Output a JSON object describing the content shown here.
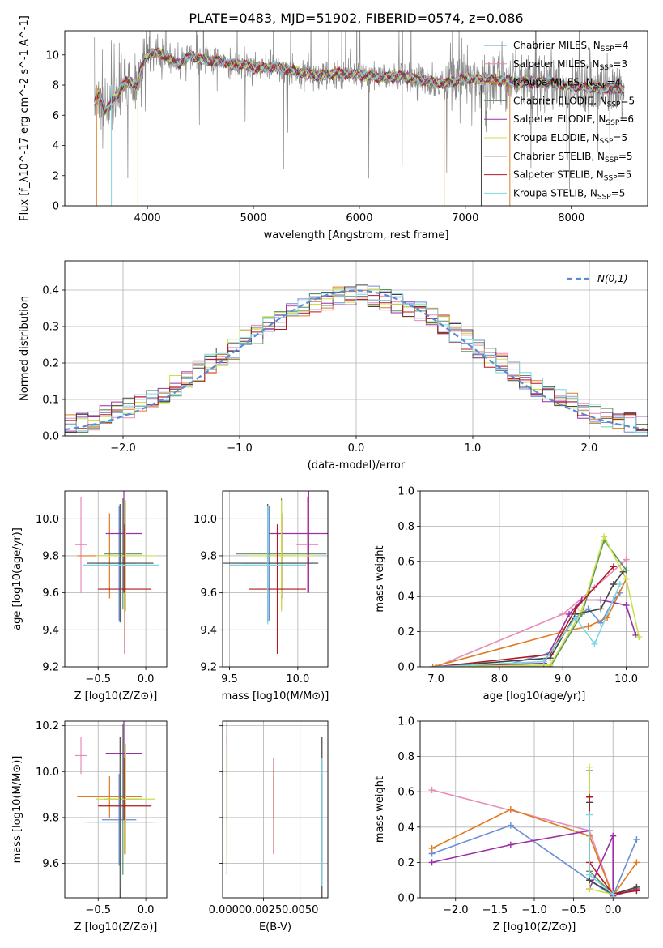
{
  "figure": {
    "title": "PLATE=0483, MJD=51902, FIBERID=0574, z=0.086"
  },
  "colors": {
    "Chabrier MILES": "#6a8fd8",
    "Salpeter MILES": "#e78bb8",
    "Kroupa MILES": "#e07a22",
    "Chabrier ELODIE": "#5f8f5f",
    "Salpeter ELODIE": "#9c2fa8",
    "Kroupa ELODIE": "#c8e04a",
    "Chabrier STELIB": "#444444",
    "Salpeter STELIB": "#b01822",
    "Kroupa STELIB": "#7fd6e0",
    "data": "#888888",
    "normal": "#5b8bd8"
  },
  "chart_data": [
    {
      "type": "line",
      "id": "spectrum",
      "xlabel": "wavelength [Angstrom, rest frame]",
      "ylabel": "Flux [f_λ10^-17 erg cm^-2 s^-1 A^-1]",
      "xlim": [
        3220,
        8720
      ],
      "ylim": [
        0,
        11.6
      ],
      "xticks": [
        4000,
        5000,
        6000,
        7000,
        8000
      ],
      "yticks": [
        0,
        2,
        4,
        6,
        8,
        10
      ],
      "grid": false,
      "legend_placement": "upper right",
      "continuum_points": {
        "x": [
          3500,
          3550,
          3600,
          3700,
          3800,
          3900,
          3950,
          4000,
          4100,
          4200,
          4300,
          4400,
          4500,
          4600,
          4700,
          4800,
          4900,
          5000,
          5200,
          5400,
          5600,
          5800,
          6000,
          6200,
          6400,
          6600,
          6800,
          7000,
          7200,
          7500,
          7800,
          8000,
          8300,
          8500
        ],
        "y": [
          6.8,
          7.5,
          6.2,
          7.2,
          8.2,
          8.0,
          9.3,
          10.0,
          10.2,
          9.8,
          9.4,
          10.0,
          9.7,
          9.6,
          9.6,
          9.3,
          9.4,
          9.1,
          9.2,
          8.9,
          8.6,
          8.8,
          8.7,
          8.5,
          8.6,
          8.3,
          8.1,
          8.4,
          8.4,
          8.2,
          8.2,
          7.9,
          7.8,
          7.7
        ]
      },
      "legend": [
        {
          "label": "Chabrier MILES, N",
          "sub": "SSP",
          "suffix": "=4"
        },
        {
          "label": "Salpeter MILES, N",
          "sub": "SSP",
          "suffix": "=3"
        },
        {
          "label": "Kroupa MILES, N",
          "sub": "SSP",
          "suffix": "=4"
        },
        {
          "label": "Chabrier ELODIE, N",
          "sub": "SSP",
          "suffix": "=5"
        },
        {
          "label": "Salpeter ELODIE, N",
          "sub": "SSP",
          "suffix": "=6"
        },
        {
          "label": "Kroupa ELODIE, N",
          "sub": "SSP",
          "suffix": "=5"
        },
        {
          "label": "Chabrier STELIB, N",
          "sub": "SSP",
          "suffix": "=5"
        },
        {
          "label": "Salpeter STELIB, N",
          "sub": "SSP",
          "suffix": "=5"
        },
        {
          "label": "Kroupa STELIB, N",
          "sub": "SSP",
          "suffix": "=5"
        }
      ]
    },
    {
      "type": "line",
      "id": "residuals",
      "xlabel": "(data-model)/error",
      "ylabel": "Normed distribution",
      "xlim": [
        -2.5,
        2.5
      ],
      "ylim": [
        0,
        0.48
      ],
      "xticks": [
        -2,
        -1,
        0,
        1,
        2
      ],
      "yticks": [
        0.0,
        0.1,
        0.2,
        0.3,
        0.4
      ],
      "grid": true,
      "legend_placement": "upper right",
      "legend_label": "N(0,1)"
    },
    {
      "type": "scatter",
      "id": "age-vs-Z",
      "xlabel": "Z [log10(Z/Z⊙)]",
      "ylabel": "age [log10(age/yr)]",
      "xlim": [
        -0.85,
        0.22
      ],
      "ylim": [
        9.2,
        10.15
      ],
      "xticks": [
        -0.5,
        0.0
      ],
      "yticks": [
        9.2,
        9.4,
        9.6,
        9.8,
        10.0
      ],
      "grid": true
    },
    {
      "type": "scatter",
      "id": "age-vs-mass",
      "xlabel": "mass [log10(M/M⊙)]",
      "ylabel": "",
      "xlim": [
        9.45,
        10.22
      ],
      "ylim": [
        9.2,
        10.15
      ],
      "xticks": [
        9.5,
        10.0
      ],
      "yticks": [
        9.2,
        9.4,
        9.6,
        9.8,
        10.0
      ],
      "grid": true
    },
    {
      "type": "line",
      "id": "weight-vs-age",
      "xlabel": "age [log10(age/yr)]",
      "ylabel": "mass weight",
      "xlim": [
        6.75,
        10.35
      ],
      "ylim": [
        0,
        1.0
      ],
      "xticks": [
        7,
        8,
        9,
        10
      ],
      "yticks": [
        0.0,
        0.2,
        0.4,
        0.6,
        0.8,
        1.0
      ],
      "grid": true
    },
    {
      "type": "scatter",
      "id": "mass-vs-Z",
      "xlabel": "Z [log10(Z/Z⊙)]",
      "ylabel": "mass [log10(M/M⊙)]",
      "xlim": [
        -0.85,
        0.22
      ],
      "ylim": [
        9.45,
        10.22
      ],
      "xticks": [
        -0.5,
        0.0
      ],
      "yticks": [
        9.6,
        9.8,
        10.0,
        10.2
      ],
      "grid": true
    },
    {
      "type": "scatter",
      "id": "mass-vs-ebv",
      "xlabel": "E(B-V)",
      "ylabel": "",
      "xlim": [
        -0.0003,
        0.0069
      ],
      "ylim": [
        9.45,
        10.22
      ],
      "xticks": [
        0.0,
        0.0025,
        0.005
      ],
      "xticklabels": [
        "0.0000",
        "0.0025",
        "0.0050"
      ],
      "yticks": [
        9.6,
        9.8,
        10.0,
        10.2
      ],
      "grid": true
    },
    {
      "type": "line",
      "id": "weight-vs-Z",
      "xlabel": "Z [log10(Z/Z⊙)]",
      "ylabel": "mass weight",
      "xlim": [
        -2.45,
        0.45
      ],
      "ylim": [
        0,
        1.0
      ],
      "xticks": [
        -2.0,
        -1.5,
        -1.0,
        -0.5,
        0.0
      ],
      "yticks": [
        0.0,
        0.2,
        0.4,
        0.6,
        0.8,
        1.0
      ],
      "grid": true
    }
  ],
  "models": [
    {
      "name": "Chabrier MILES",
      "Z": [
        -0.28,
        0.18
      ],
      "age": [
        9.76,
        0.31
      ],
      "mass": [
        9.79,
        0.2
      ],
      "ebv": 0.0065,
      "age_w": [
        [
          7.0,
          0.0
        ],
        [
          8.0,
          0.0
        ],
        [
          8.8,
          0.08
        ],
        [
          9.2,
          0.28
        ],
        [
          9.4,
          0.33
        ],
        [
          9.6,
          0.25
        ],
        [
          9.8,
          0.38
        ],
        [
          9.9,
          0.42
        ]
      ],
      "Z_w": [
        [
          -2.3,
          0.25
        ],
        [
          -1.3,
          0.41
        ],
        [
          -0.3,
          0.1
        ],
        [
          0.0,
          0.01
        ],
        [
          0.3,
          0.33
        ]
      ]
    },
    {
      "name": "Salpeter MILES",
      "Z": [
        -0.68,
        0.06
      ],
      "age": [
        9.86,
        0.26
      ],
      "mass": [
        10.07,
        0.08
      ],
      "ebv": 0.0,
      "age_w": [
        [
          7.0,
          0.0
        ],
        [
          9.0,
          0.3
        ],
        [
          9.5,
          0.45
        ],
        [
          10.0,
          0.61
        ]
      ],
      "Z_w": [
        [
          -2.3,
          0.61
        ],
        [
          -0.3,
          0.38
        ],
        [
          0.0,
          0.01
        ]
      ]
    },
    {
      "name": "Kroupa MILES",
      "Z": [
        -0.38,
        0.34
      ],
      "age": [
        9.8,
        0.23
      ],
      "mass": [
        9.89,
        0.09
      ],
      "ebv": 0.0032,
      "age_w": [
        [
          6.95,
          0.0
        ],
        [
          9.0,
          0.2
        ],
        [
          9.4,
          0.23
        ],
        [
          9.7,
          0.28
        ],
        [
          10.0,
          0.5
        ]
      ],
      "Z_w": [
        [
          -2.3,
          0.28
        ],
        [
          -1.3,
          0.5
        ],
        [
          -0.3,
          0.35
        ],
        [
          0.0,
          0.01
        ],
        [
          0.3,
          0.2
        ]
      ]
    },
    {
      "name": "Chabrier ELODIE",
      "Z": [
        -0.24,
        0.2
      ],
      "age": [
        9.81,
        0.3
      ],
      "mass": [
        9.88,
        0.33
      ],
      "ebv": 0.0,
      "age_w": [
        [
          7.0,
          0.0
        ],
        [
          8.8,
          0.0
        ],
        [
          9.3,
          0.3
        ],
        [
          9.65,
          0.72
        ],
        [
          10.0,
          0.55
        ]
      ],
      "Z_w": [
        [
          -0.3,
          0.72
        ],
        [
          -0.3,
          0.15
        ],
        [
          0.0,
          0.02
        ],
        [
          0.3,
          0.05
        ]
      ]
    },
    {
      "name": "Salpeter ELODIE",
      "Z": [
        -0.23,
        0.19
      ],
      "age": [
        9.92,
        0.32
      ],
      "mass": [
        10.08,
        0.29
      ],
      "ebv": 0.0,
      "age_w": [
        [
          7.0,
          0.0
        ],
        [
          8.7,
          0.02
        ],
        [
          9.1,
          0.3
        ],
        [
          9.3,
          0.38
        ],
        [
          9.6,
          0.38
        ],
        [
          10.0,
          0.35
        ],
        [
          10.15,
          0.18
        ]
      ],
      "Z_w": [
        [
          -2.3,
          0.2
        ],
        [
          -1.3,
          0.3
        ],
        [
          -0.3,
          0.38
        ],
        [
          -0.3,
          0.05
        ],
        [
          0.0,
          0.35
        ],
        [
          0.0,
          0.01
        ],
        [
          0.3,
          0.05
        ]
      ]
    },
    {
      "name": "Kroupa ELODIE",
      "Z": [
        -0.21,
        0.31
      ],
      "age": [
        9.8,
        0.3
      ],
      "mass": [
        9.88,
        0.24
      ],
      "ebv": 0.0,
      "age_w": [
        [
          7.0,
          0.0
        ],
        [
          8.8,
          0.01
        ],
        [
          9.3,
          0.32
        ],
        [
          9.65,
          0.74
        ],
        [
          10.0,
          0.5
        ],
        [
          10.2,
          0.17
        ]
      ],
      "Z_w": [
        [
          -0.3,
          0.74
        ],
        [
          -0.3,
          0.05
        ],
        [
          0.0,
          0.02
        ],
        [
          0.3,
          0.06
        ]
      ]
    },
    {
      "name": "Chabrier STELIB",
      "Z": [
        -0.27,
        0.35
      ],
      "age": [
        9.76,
        0.32
      ],
      "mass": [
        9.78,
        0.37
      ],
      "ebv": 0.0065,
      "age_w": [
        [
          7.0,
          0.0
        ],
        [
          8.8,
          0.05
        ],
        [
          9.2,
          0.3
        ],
        [
          9.6,
          0.33
        ],
        [
          9.8,
          0.47
        ],
        [
          9.95,
          0.54
        ]
      ],
      "Z_w": [
        [
          -0.3,
          0.54
        ],
        [
          -0.3,
          0.1
        ],
        [
          0.0,
          0.02
        ],
        [
          0.3,
          0.06
        ]
      ]
    },
    {
      "name": "Salpeter STELIB",
      "Z": [
        -0.22,
        0.28
      ],
      "age": [
        9.62,
        0.35
      ],
      "mass": [
        9.85,
        0.21
      ],
      "ebv": 0.0032,
      "age_w": [
        [
          7.0,
          0.0
        ],
        [
          8.8,
          0.07
        ],
        [
          9.2,
          0.33
        ],
        [
          9.8,
          0.57
        ]
      ],
      "Z_w": [
        [
          -0.3,
          0.57
        ],
        [
          -0.3,
          0.2
        ],
        [
          0.0,
          0.02
        ],
        [
          0.3,
          0.04
        ]
      ]
    },
    {
      "name": "Kroupa STELIB",
      "Z": [
        -0.26,
        0.4
      ],
      "age": [
        9.75,
        0.32
      ],
      "mass": [
        9.78,
        0.28
      ],
      "ebv": 0.0065,
      "age_w": [
        [
          7.0,
          0.0
        ],
        [
          8.7,
          0.03
        ],
        [
          9.2,
          0.28
        ],
        [
          9.5,
          0.13
        ],
        [
          9.9,
          0.47
        ]
      ],
      "Z_w": [
        [
          -0.3,
          0.47
        ],
        [
          -0.3,
          0.13
        ],
        [
          0.0,
          0.02
        ]
      ]
    }
  ]
}
